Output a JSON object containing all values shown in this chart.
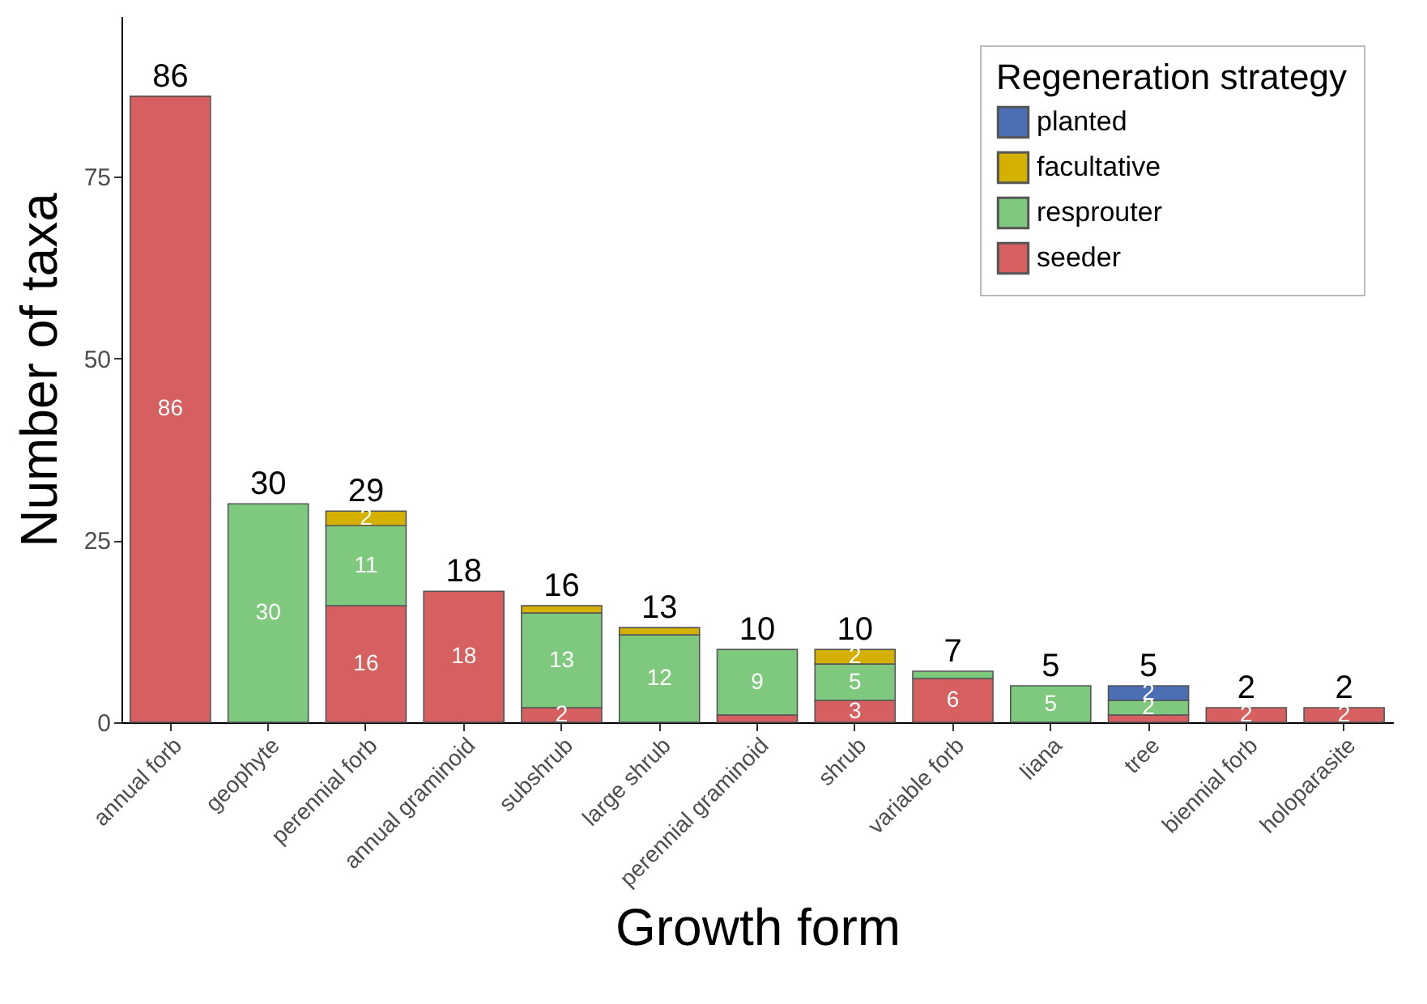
{
  "chart_data": {
    "type": "bar",
    "stacked": true,
    "xlabel": "Growth form",
    "ylabel": "Number of taxa",
    "legend_title": "Regeneration strategy",
    "legend": "top right",
    "grid": false,
    "categories": [
      "annual forb",
      "geophyte",
      "perennial forb",
      "annual graminoid",
      "subshrub",
      "large shrub",
      "perennial graminoid",
      "shrub",
      "variable forb",
      "liana",
      "tree",
      "biennial forb",
      "holoparasite"
    ],
    "ylim": [
      0,
      97
    ],
    "yticks": [
      0,
      25,
      50,
      75
    ],
    "series": [
      {
        "name": "seeder",
        "color": "#d65f5f",
        "values": [
          86,
          null,
          16,
          18,
          2,
          null,
          1,
          3,
          6,
          null,
          1,
          2,
          2
        ],
        "value_labels": [
          "86",
          null,
          "16",
          "18",
          "2",
          null,
          null,
          "3",
          "6",
          null,
          null,
          "2",
          "2"
        ]
      },
      {
        "name": "resprouter",
        "color": "#7fc97f",
        "values": [
          null,
          30,
          11,
          null,
          13,
          12,
          9,
          5,
          1,
          5,
          2,
          null,
          null
        ],
        "value_labels": [
          null,
          "30",
          "11",
          null,
          "13",
          "12",
          "9",
          "5",
          null,
          "5",
          "2",
          null,
          null
        ]
      },
      {
        "name": "facultative",
        "color": "#d4b000",
        "values": [
          null,
          null,
          2,
          null,
          1,
          1,
          null,
          2,
          null,
          null,
          null,
          null,
          null
        ],
        "value_labels": [
          null,
          null,
          "2",
          null,
          null,
          null,
          null,
          "2",
          null,
          null,
          null,
          null,
          null
        ]
      },
      {
        "name": "planted",
        "color": "#4a6fb5",
        "values": [
          null,
          null,
          null,
          null,
          null,
          null,
          null,
          null,
          null,
          null,
          2,
          null,
          null
        ],
        "value_labels": [
          null,
          null,
          null,
          null,
          null,
          null,
          null,
          null,
          null,
          null,
          "2",
          null,
          null
        ]
      }
    ],
    "totals": [
      "86",
      "30",
      "29",
      "18",
      "16",
      "13",
      "10",
      "10",
      "7",
      "5",
      "5",
      "2",
      "2"
    ]
  }
}
